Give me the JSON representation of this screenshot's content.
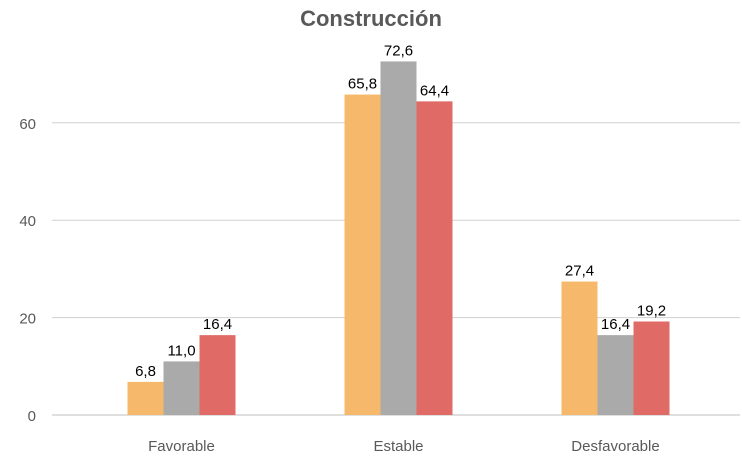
{
  "chart_data": {
    "type": "bar",
    "title": "Construcción",
    "xlabel": "",
    "ylabel": "",
    "categories": [
      "Favorable",
      "Estable",
      "Desfavorable"
    ],
    "series": [
      {
        "values": [
          6.8,
          65.8,
          27.4
        ],
        "color": "#F6B96B"
      },
      {
        "values": [
          11.0,
          72.6,
          16.4
        ],
        "color": "#AAAAAA"
      },
      {
        "values": [
          16.4,
          64.4,
          19.2
        ],
        "color": "#E06A66"
      }
    ],
    "data_labels": [
      [
        "6,8",
        "65,8",
        "27,4"
      ],
      [
        "11,0",
        "72,6",
        "16,4"
      ],
      [
        "16,4",
        "64,4",
        "19,2"
      ]
    ],
    "ylim": [
      0,
      75
    ],
    "yticks": [
      0,
      20,
      40,
      60
    ],
    "ytick_labels": [
      "0",
      "20",
      "40",
      "60"
    ],
    "grid": true,
    "legend": "none"
  }
}
